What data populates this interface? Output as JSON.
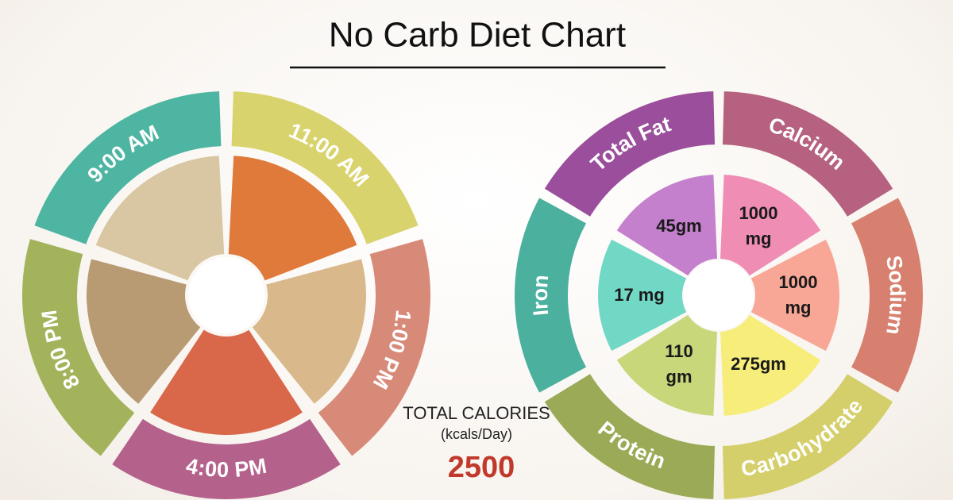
{
  "title": "No Carb Diet Chart",
  "meal_wheel": {
    "times": [
      "9:00 AM",
      "11:00 AM",
      "1:00 PM",
      "4:00 PM",
      "8:00 PM"
    ]
  },
  "nutrient_wheel": {
    "nutrients": [
      {
        "name": "Total Fat",
        "amount": "45gm"
      },
      {
        "name": "Calcium",
        "amount": "1000 mg"
      },
      {
        "name": "Sodium",
        "amount": "1000 mg"
      },
      {
        "name": "Carbohydrate",
        "amount": "275gm"
      },
      {
        "name": "Protein",
        "amount": "110 gm"
      },
      {
        "name": "Iron",
        "amount": "17 mg"
      }
    ]
  },
  "calories": {
    "label": "TOTAL CALORIES",
    "unit": "(kcals/Day)",
    "value": "2500"
  }
}
